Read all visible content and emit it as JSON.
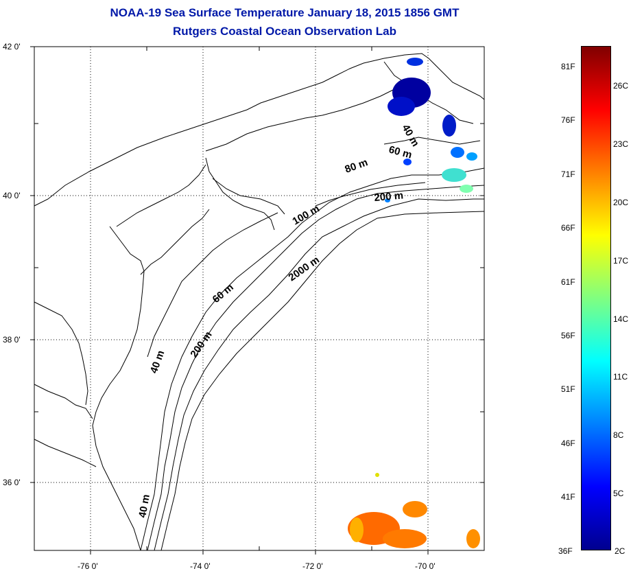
{
  "title": "NOAA-19 Sea Surface Temperature January 18, 2015 1856 GMT",
  "subtitle": "Rutgers Coastal Ocean Observation Lab",
  "map": {
    "latitude_labels": [
      "42 0'",
      "40 0'",
      "38 0'",
      "36 0'"
    ],
    "longitude_labels": [
      "-76 0'",
      "-74 0'",
      "-72 0'",
      "-70 0'"
    ],
    "contour_labels": [
      "40 m",
      "60 m",
      "80 m",
      "200 m",
      "100 m",
      "2000 m",
      "60 m",
      "40 m",
      "200 m",
      "40 m"
    ],
    "colors": {
      "land_line": "#000000",
      "grid": "#000000",
      "water": "#ffffff"
    }
  },
  "colorbar": {
    "fahrenheit_labels": [
      "81F",
      "76F",
      "71F",
      "66F",
      "61F",
      "56F",
      "51F",
      "46F",
      "41F",
      "36F"
    ],
    "celsius_labels": [
      "26C",
      "23C",
      "20C",
      "17C",
      "14C",
      "11C",
      "8C",
      "5C",
      "2C"
    ],
    "scale_colors": [
      "#00008f",
      "#0000ff",
      "#0080ff",
      "#00ffff",
      "#80ff80",
      "#ffff00",
      "#ff8000",
      "#ff0000",
      "#800000"
    ]
  }
}
